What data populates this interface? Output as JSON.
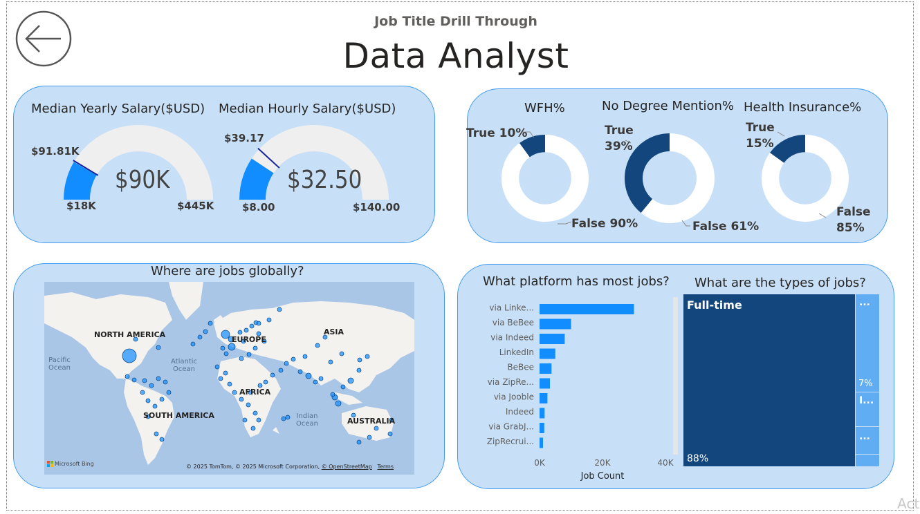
{
  "header": {
    "subtitle": "Job Title Drill Through",
    "title": "Data Analyst",
    "back_icon": "back-arrow-icon"
  },
  "salary": {
    "yearly": {
      "title": "Median Yearly Salary($USD)",
      "value_label": "$90K",
      "min_label": "$18K",
      "max_label": "$445K",
      "target_label": "$91.81K",
      "value": 90000,
      "min": 18000,
      "max": 445000,
      "target": 91810
    },
    "hourly": {
      "title": "Median Hourly Salary($USD)",
      "value_label": "$32.50",
      "min_label": "$8.00",
      "max_label": "$140.00",
      "target_label": "$39.17",
      "value": 32.5,
      "min": 8,
      "max": 140,
      "target": 39.17
    }
  },
  "donuts": [
    {
      "title": "WFH%",
      "true_label": "True 10%",
      "false_label": "False 90%",
      "true_pct": 10
    },
    {
      "title": "No Degree Mention%",
      "true_label_1": "True",
      "true_label_2": "39%",
      "false_label": "False 61%",
      "true_pct": 39
    },
    {
      "title": "Health Insurance%",
      "true_label_1": "True",
      "true_label_2": "15%",
      "false_label_1": "False",
      "false_label_2": "85%",
      "true_pct": 15
    }
  ],
  "map": {
    "title": "Where are jobs globally?",
    "labels": {
      "north_america": "NORTH AMERICA",
      "europe": "EUROPE",
      "asia": "ASIA",
      "africa": "AFRICA",
      "south_america": "SOUTH AMERICA",
      "australia": "AUSTRALIA",
      "pacific_1": "Pacific",
      "pacific_2": "Ocean",
      "atlantic_1": "Atlantic",
      "atlantic_2": "Ocean",
      "indian_1": "Indian",
      "indian_2": "Ocean"
    },
    "attribution": "© 2025 TomTom, © 2025 Microsoft Corporation,",
    "osm": "© OpenStreetMap",
    "terms": "Terms",
    "logo": "Microsoft Bing"
  },
  "platform": {
    "title": "What platform has most jobs?",
    "xlabel": "Job Count"
  },
  "job_types": {
    "title": "What are the types of jobs?",
    "main_label": "Full-time",
    "main_pct": "88%",
    "second_pct": "7%",
    "ellipsis_1": "...",
    "ellipsis_2": "I...",
    "ellipsis_3": "...",
    "fractions": [
      0.88,
      0.07,
      0.025,
      0.015,
      0.01
    ]
  },
  "chart_data": {
    "type": "bar",
    "orientation": "horizontal",
    "categories": [
      "via Linke...",
      "via BeBee",
      "via Indeed",
      "LinkedIn",
      "BeBee",
      "via ZipRe...",
      "via Jooble",
      "Indeed",
      "via GrabJ...",
      "ZipRecrui..."
    ],
    "values": [
      30000,
      10000,
      8000,
      5000,
      3800,
      3300,
      2500,
      1600,
      1500,
      1100
    ],
    "xlabel": "Job Count",
    "xticks": [
      "0K",
      "20K",
      "40K"
    ],
    "xlim": [
      0,
      40000
    ]
  },
  "colors": {
    "accent": "#118dff",
    "dark": "#12467c",
    "card_bg": "#c7e0f7",
    "card_border": "#3f9af0"
  },
  "watermark": "Act"
}
